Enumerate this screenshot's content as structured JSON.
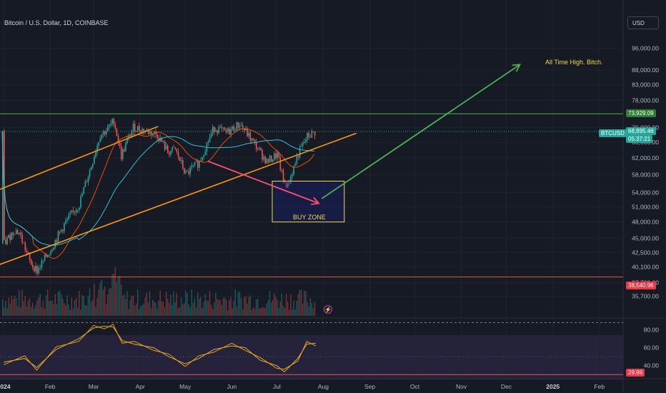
{
  "header": {
    "title": "Bitcoin / U.S. Dollar, 1D, COINBASE",
    "currency": "USD"
  },
  "colors": {
    "background": "#161a25",
    "up": "#26a69a",
    "down": "#ef5350",
    "trendline": "#ff9800",
    "target_arrow": "#4caf50",
    "buy_zone": "#f2d94e",
    "resistance": "#4caf50",
    "support": "#ef5350",
    "rsi_line": "#ff9800",
    "rsi_band": "#7e57c2"
  },
  "annotations": {
    "ath_text": "All Time High. Bitch.",
    "buy_zone_label": "BUY ZONE"
  },
  "price_tags": {
    "resistance": "73,929.09",
    "symbol": "BTCUSD",
    "last_price": "68,895.46",
    "countdown": "05:37:21",
    "support": "38,540.96",
    "rsi_level": "29.99"
  },
  "chart_data": [
    {
      "type": "line",
      "title": "Bitcoin / U.S. Dollar, 1D, COINBASE",
      "xlabel": "",
      "ylabel": "",
      "y_scale": "log",
      "ylim": [
        33000,
        110000
      ],
      "x_ticks": [
        "2024",
        "Feb",
        "Mar",
        "Apr",
        "May",
        "Jun",
        "Jul",
        "Aug",
        "Sep",
        "Oct",
        "Nov",
        "Dec",
        "2025",
        "Feb"
      ],
      "y_ticks": [
        "96,000.00",
        "88,000.00",
        "83,000.00",
        "78,000.00",
        "70,000.00",
        "66,000.00",
        "62,000.00",
        "58,000.00",
        "54,000.00",
        "51,000.00",
        "48,000.00",
        "45,000.00",
        "42,500.00",
        "40,100.00",
        "37,700.00",
        "35,700.00"
      ],
      "series": [
        {
          "name": "BTCUSD",
          "points": [
            [
              "2024-01-01",
              44000
            ],
            [
              "2024-01-08",
              46500
            ],
            [
              "2024-01-11",
              46000
            ],
            [
              "2024-01-18",
              41000
            ],
            [
              "2024-01-23",
              39500
            ],
            [
              "2024-02-01",
              43000
            ],
            [
              "2024-02-10",
              47500
            ],
            [
              "2024-02-20",
              51500
            ],
            [
              "2024-02-28",
              60000
            ],
            [
              "2024-03-05",
              68000
            ],
            [
              "2024-03-10",
              69500
            ],
            [
              "2024-03-14",
              72000
            ],
            [
              "2024-03-19",
              62500
            ],
            [
              "2024-03-27",
              70000
            ],
            [
              "2024-04-01",
              69500
            ],
            [
              "2024-04-12",
              68000
            ],
            [
              "2024-04-19",
              63500
            ],
            [
              "2024-04-24",
              64000
            ],
            [
              "2024-05-01",
              58000
            ],
            [
              "2024-05-10",
              61000
            ],
            [
              "2024-05-20",
              70000
            ],
            [
              "2024-05-28",
              68500
            ],
            [
              "2024-06-06",
              71000
            ],
            [
              "2024-06-14",
              66500
            ],
            [
              "2024-06-24",
              61000
            ],
            [
              "2024-07-01",
              62800
            ],
            [
              "2024-07-05",
              56500
            ],
            [
              "2024-07-08",
              55500
            ],
            [
              "2024-07-15",
              63000
            ],
            [
              "2024-07-21",
              67500
            ],
            [
              "2024-07-27",
              68895
            ]
          ]
        }
      ],
      "levels": [
        {
          "label": "73,929.09",
          "value": 73929.09
        },
        {
          "label": "38,540.96",
          "value": 38540.96
        }
      ],
      "trendline_orange": [
        [
          "2023-12-27",
          40300
        ],
        [
          "2024-08-23",
          68400
        ]
      ],
      "trendline_orange_upper": [
        [
          "2024-02-10",
          55000
        ],
        [
          "2024-04-01",
          69500
        ]
      ],
      "buy_zone": {
        "label": "BUY ZONE",
        "x": [
          "2024-06-28",
          "2024-08-15"
        ],
        "y": [
          48000,
          56500
        ]
      },
      "arrows": [
        {
          "from": [
            "2024-05-16",
            61200
          ],
          "to": [
            "2024-07-29",
            51700
          ]
        },
        {
          "from": [
            "2024-07-31",
            52700
          ],
          "to": [
            "2024-12-10",
            90000
          ],
          "label": "All Time High. Bitch."
        }
      ]
    },
    {
      "type": "line",
      "title": "",
      "ylim": [
        27,
        90
      ],
      "y_ticks": [
        "80.00",
        "60.00",
        "40.00"
      ],
      "series": [
        {
          "name": "RSI",
          "points": [
            [
              "2024-01-01",
              44
            ],
            [
              "2024-01-15",
              48
            ],
            [
              "2024-01-23",
              38
            ],
            [
              "2024-02-05",
              58
            ],
            [
              "2024-02-20",
              70
            ],
            [
              "2024-03-01",
              82
            ],
            [
              "2024-03-08",
              84
            ],
            [
              "2024-03-14",
              83
            ],
            [
              "2024-03-20",
              68
            ],
            [
              "2024-03-28",
              64
            ],
            [
              "2024-04-10",
              60
            ],
            [
              "2024-04-20",
              50
            ],
            [
              "2024-05-01",
              42
            ],
            [
              "2024-05-10",
              48
            ],
            [
              "2024-05-20",
              58
            ],
            [
              "2024-06-01",
              62
            ],
            [
              "2024-06-10",
              60
            ],
            [
              "2024-06-20",
              46
            ],
            [
              "2024-07-01",
              40
            ],
            [
              "2024-07-06",
              33
            ],
            [
              "2024-07-15",
              48
            ],
            [
              "2024-07-21",
              64
            ],
            [
              "2024-07-27",
              65
            ]
          ]
        }
      ],
      "levels": [
        {
          "label": "29.99",
          "value": 29.99
        }
      ]
    }
  ]
}
